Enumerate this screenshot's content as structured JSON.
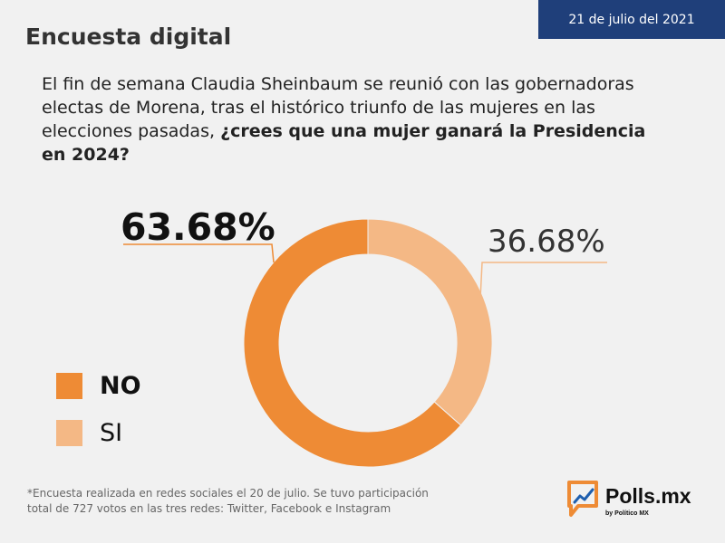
{
  "header": {
    "date": "21 de julio del 2021",
    "title": "Encuesta digital"
  },
  "question": {
    "text_regular": "El fin de semana Claudia Sheinbaum se reunió con las gobernadoras electas de Morena, tras el histórico triunfo de las mujeres en las elecciones pasadas, ",
    "text_bold": "¿crees que una mujer ganará la Presidencia en 2024?"
  },
  "chart_data": {
    "type": "pie",
    "donut": true,
    "title": "",
    "slices": [
      {
        "label": "NO",
        "value": 63.68,
        "display": "63.68%",
        "color": "#ee8b35"
      },
      {
        "label": "SI",
        "value": 36.68,
        "display": "36.68%",
        "color": "#f4b885"
      }
    ],
    "legend": [
      "NO",
      "SI"
    ],
    "legend_position": "left"
  },
  "footnote": {
    "line1": "*Encuesta realizada en redes sociales el 20 de julio. Se tuvo participación",
    "line2": "total de  727 votos en las tres redes: Twitter, Facebook e Instagram"
  },
  "brand": {
    "name": "Polls.mx",
    "tagline": "by Político MX",
    "color": "#ee8b35"
  }
}
